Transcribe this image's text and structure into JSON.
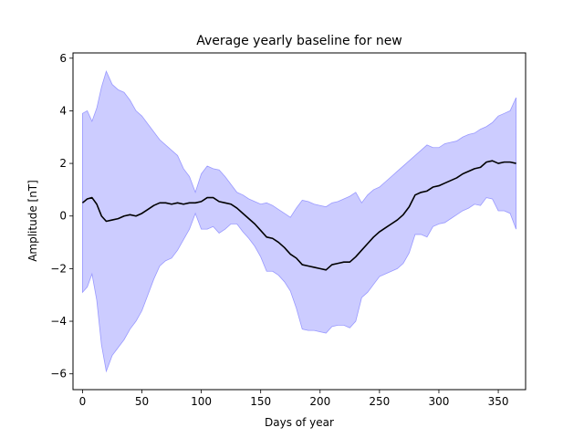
{
  "chart_data": {
    "type": "area",
    "title": "Average yearly baseline for new",
    "xlabel": "Days of year",
    "ylabel": "Amplitude [nT]",
    "xlim": [
      -8,
      373
    ],
    "ylim": [
      -6.6,
      6.2
    ],
    "xticks": [
      0,
      50,
      100,
      150,
      200,
      250,
      300,
      350
    ],
    "yticks": [
      -6,
      -4,
      -2,
      0,
      2,
      4,
      6
    ],
    "grid": false,
    "colors": {
      "band_fill": "#ccccff",
      "band_edge": "#9999ff",
      "mean_line": "#000000"
    },
    "x": [
      0,
      4,
      8,
      12,
      16,
      20,
      25,
      30,
      35,
      40,
      45,
      50,
      55,
      60,
      65,
      70,
      75,
      80,
      85,
      90,
      95,
      100,
      105,
      110,
      115,
      120,
      125,
      130,
      135,
      140,
      145,
      150,
      155,
      160,
      165,
      170,
      175,
      180,
      185,
      190,
      195,
      200,
      205,
      210,
      215,
      220,
      225,
      230,
      235,
      240,
      245,
      250,
      255,
      260,
      265,
      270,
      275,
      280,
      285,
      290,
      295,
      300,
      305,
      310,
      315,
      320,
      325,
      330,
      335,
      340,
      345,
      350,
      355,
      360,
      365
    ],
    "series": [
      {
        "values": [
          0.5,
          0.65,
          0.7,
          0.45,
          0.0,
          -0.2,
          -0.15,
          -0.1,
          0.0,
          0.05,
          0.0,
          0.1,
          0.25,
          0.4,
          0.5,
          0.5,
          0.45,
          0.5,
          0.45,
          0.5,
          0.5,
          0.55,
          0.7,
          0.7,
          0.55,
          0.5,
          0.45,
          0.3,
          0.1,
          -0.1,
          -0.3,
          -0.55,
          -0.8,
          -0.85,
          -1.0,
          -1.2,
          -1.45,
          -1.6,
          -1.85,
          -1.9,
          -1.95,
          -2.0,
          -2.05,
          -1.85,
          -1.8,
          -1.75,
          -1.75,
          -1.55,
          -1.3,
          -1.05,
          -0.8,
          -0.6,
          -0.45,
          -0.3,
          -0.15,
          0.05,
          0.35,
          0.8,
          0.9,
          0.95,
          1.1,
          1.15,
          1.25,
          1.35,
          1.45,
          1.6,
          1.7,
          1.8,
          1.85,
          2.05,
          2.1,
          2.0,
          2.05,
          2.05,
          2.0
        ]
      }
    ],
    "band_upper": [
      3.9,
      4.0,
      3.6,
      4.1,
      4.9,
      5.5,
      5.0,
      4.8,
      4.7,
      4.4,
      4.0,
      3.8,
      3.5,
      3.2,
      2.9,
      2.7,
      2.5,
      2.3,
      1.8,
      1.5,
      0.9,
      1.6,
      1.9,
      1.8,
      1.75,
      1.5,
      1.2,
      0.9,
      0.8,
      0.65,
      0.55,
      0.45,
      0.5,
      0.4,
      0.25,
      0.1,
      -0.05,
      0.3,
      0.6,
      0.55,
      0.45,
      0.4,
      0.35,
      0.5,
      0.55,
      0.65,
      0.75,
      0.9,
      0.5,
      0.8,
      1.0,
      1.1,
      1.3,
      1.5,
      1.7,
      1.9,
      2.1,
      2.3,
      2.5,
      2.7,
      2.6,
      2.6,
      2.75,
      2.8,
      2.85,
      3.0,
      3.1,
      3.15,
      3.3,
      3.4,
      3.55,
      3.8,
      3.9,
      4.0,
      4.5
    ]
  }
}
